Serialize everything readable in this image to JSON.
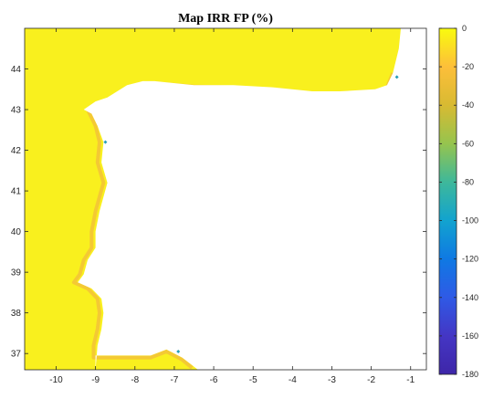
{
  "title": "Map IRR FP (%)",
  "map": {
    "xlim": [
      -10.8,
      -0.6
    ],
    "ylim": [
      36.6,
      45.0
    ],
    "x_ticks": [
      -10,
      -9,
      -8,
      -7,
      -6,
      -5,
      -4,
      -3,
      -2,
      -1
    ],
    "y_ticks": [
      37,
      38,
      39,
      40,
      41,
      42,
      43,
      44
    ],
    "land_color": "#ffffff",
    "field_color": "#f9f01e",
    "coast_band_color": "#f3c238"
  },
  "colorbar": {
    "min": -180,
    "max": 0,
    "ticks": [
      0,
      -20,
      -40,
      -60,
      -80,
      -100,
      -120,
      -140,
      -160,
      -180
    ],
    "colormap": "parula",
    "colors": [
      "#f9fb0e",
      "#fdbf3a",
      "#d8ba32",
      "#96c44e",
      "#3eb89a",
      "#12a3cf",
      "#0f79e3",
      "#2f5ae6",
      "#4436c4",
      "#3e26a8"
    ]
  }
}
